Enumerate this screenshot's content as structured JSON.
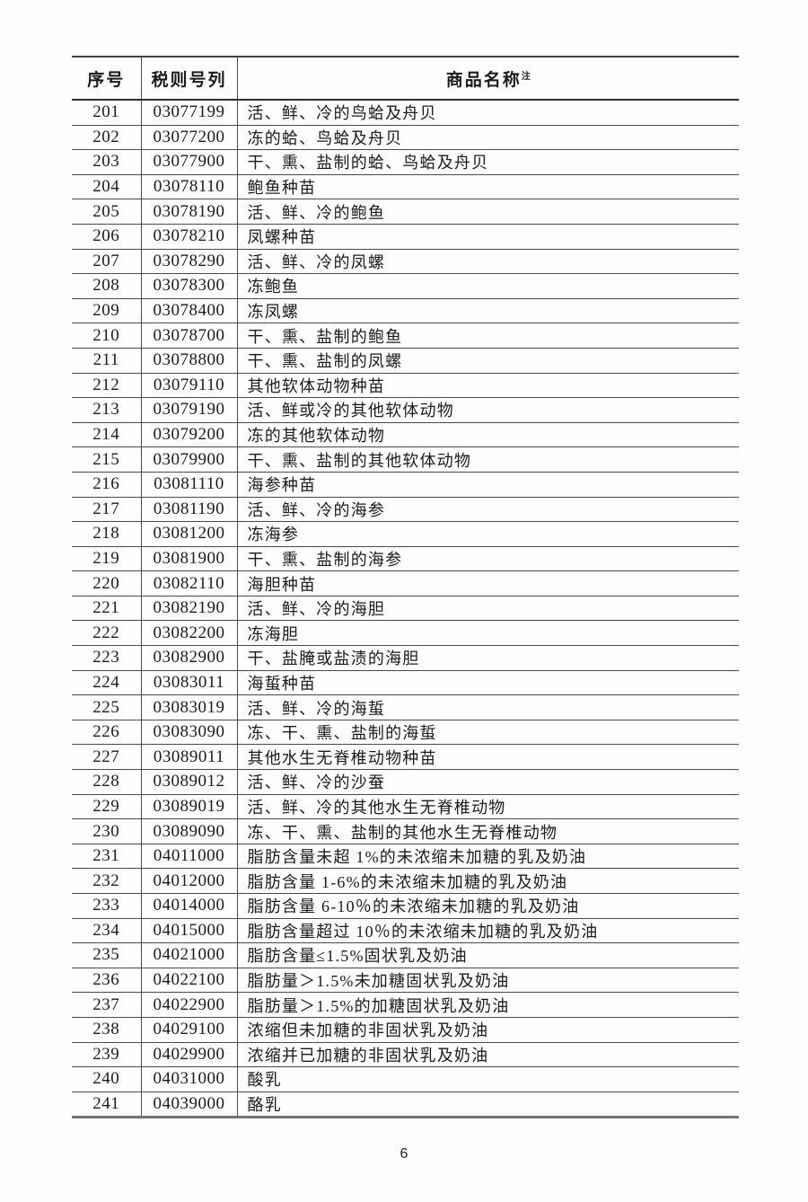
{
  "page": {
    "page_number": "6",
    "background": "#fdfdfc",
    "line_color": "#4a4a4a"
  },
  "table": {
    "headers": {
      "serial": "序号",
      "code": "税则号列",
      "name": "商品名称",
      "name_note": "注"
    },
    "rows": [
      {
        "no": "201",
        "code": "03077199",
        "name": "活、鲜、冷的鸟蛤及舟贝"
      },
      {
        "no": "202",
        "code": "03077200",
        "name": "冻的蛤、鸟蛤及舟贝"
      },
      {
        "no": "203",
        "code": "03077900",
        "name": "干、熏、盐制的蛤、鸟蛤及舟贝"
      },
      {
        "no": "204",
        "code": "03078110",
        "name": "鲍鱼种苗"
      },
      {
        "no": "205",
        "code": "03078190",
        "name": "活、鲜、冷的鲍鱼"
      },
      {
        "no": "206",
        "code": "03078210",
        "name": "凤螺种苗"
      },
      {
        "no": "207",
        "code": "03078290",
        "name": "活、鲜、冷的凤螺"
      },
      {
        "no": "208",
        "code": "03078300",
        "name": "冻鲍鱼"
      },
      {
        "no": "209",
        "code": "03078400",
        "name": "冻凤螺"
      },
      {
        "no": "210",
        "code": "03078700",
        "name": "干、熏、盐制的鲍鱼"
      },
      {
        "no": "211",
        "code": "03078800",
        "name": "干、熏、盐制的凤螺"
      },
      {
        "no": "212",
        "code": "03079110",
        "name": "其他软体动物种苗"
      },
      {
        "no": "213",
        "code": "03079190",
        "name": "活、鲜或冷的其他软体动物"
      },
      {
        "no": "214",
        "code": "03079200",
        "name": "冻的其他软体动物"
      },
      {
        "no": "215",
        "code": "03079900",
        "name": "干、熏、盐制的其他软体动物"
      },
      {
        "no": "216",
        "code": "03081110",
        "name": "海参种苗"
      },
      {
        "no": "217",
        "code": "03081190",
        "name": "活、鲜、冷的海参"
      },
      {
        "no": "218",
        "code": "03081200",
        "name": "冻海参"
      },
      {
        "no": "219",
        "code": "03081900",
        "name": "干、熏、盐制的海参"
      },
      {
        "no": "220",
        "code": "03082110",
        "name": "海胆种苗"
      },
      {
        "no": "221",
        "code": "03082190",
        "name": "活、鲜、冷的海胆"
      },
      {
        "no": "222",
        "code": "03082200",
        "name": "冻海胆"
      },
      {
        "no": "223",
        "code": "03082900",
        "name": "干、盐腌或盐渍的海胆"
      },
      {
        "no": "224",
        "code": "03083011",
        "name": "海蜇种苗"
      },
      {
        "no": "225",
        "code": "03083019",
        "name": "活、鲜、冷的海蜇"
      },
      {
        "no": "226",
        "code": "03083090",
        "name": "冻、干、熏、盐制的海蜇"
      },
      {
        "no": "227",
        "code": "03089011",
        "name": "其他水生无脊椎动物种苗"
      },
      {
        "no": "228",
        "code": "03089012",
        "name": "活、鲜、冷的沙蚕"
      },
      {
        "no": "229",
        "code": "03089019",
        "name": "活、鲜、冷的其他水生无脊椎动物"
      },
      {
        "no": "230",
        "code": "03089090",
        "name": "冻、干、熏、盐制的其他水生无脊椎动物"
      },
      {
        "no": "231",
        "code": "04011000",
        "name": "脂肪含量未超 1%的未浓缩未加糖的乳及奶油"
      },
      {
        "no": "232",
        "code": "04012000",
        "name": "脂肪含量 1-6%的未浓缩未加糖的乳及奶油"
      },
      {
        "no": "233",
        "code": "04014000",
        "name": "脂肪含量 6-10％的未浓缩未加糖的乳及奶油"
      },
      {
        "no": "234",
        "code": "04015000",
        "name": "脂肪含量超过 10％的未浓缩未加糖的乳及奶油"
      },
      {
        "no": "235",
        "code": "04021000",
        "name": "脂肪含量≤1.5%固状乳及奶油"
      },
      {
        "no": "236",
        "code": "04022100",
        "name": "脂肪量＞1.5%未加糖固状乳及奶油"
      },
      {
        "no": "237",
        "code": "04022900",
        "name": "脂肪量＞1.5%的加糖固状乳及奶油"
      },
      {
        "no": "238",
        "code": "04029100",
        "name": "浓缩但未加糖的非固状乳及奶油"
      },
      {
        "no": "239",
        "code": "04029900",
        "name": "浓缩并已加糖的非固状乳及奶油"
      },
      {
        "no": "240",
        "code": "04031000",
        "name": "酸乳"
      },
      {
        "no": "241",
        "code": "04039000",
        "name": "酪乳"
      }
    ]
  }
}
